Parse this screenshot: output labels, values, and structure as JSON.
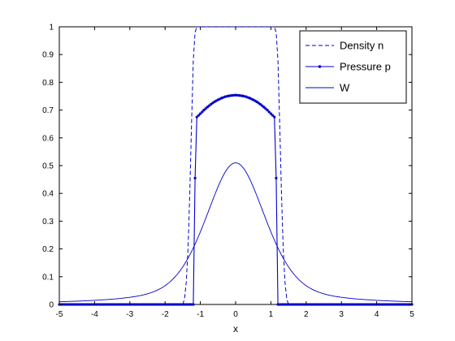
{
  "chart_data": {
    "type": "line",
    "title": "",
    "xlabel": "x",
    "ylabel": "",
    "xlim": [
      -5,
      5
    ],
    "ylim": [
      0,
      1
    ],
    "xticks": [
      "-5",
      "-4",
      "-3",
      "-2",
      "-1",
      "0",
      "1",
      "2",
      "3",
      "4",
      "5"
    ],
    "yticks": [
      "0",
      "0.1",
      "0.2",
      "0.3",
      "0.4",
      "0.5",
      "0.6",
      "0.7",
      "0.8",
      "0.9",
      "1"
    ],
    "grid": false,
    "legend_position": "top-right",
    "colors": {
      "series": "#0000cc",
      "axes": "#000000"
    },
    "series": [
      {
        "name": "Density n",
        "style": "dashed",
        "x": [
          -5,
          -1.5,
          -1.45,
          -1.4,
          -1.35,
          -1.3,
          -1.25,
          -1.2,
          -1.15,
          -1.1,
          1.1,
          1.15,
          1.2,
          1.25,
          1.3,
          1.35,
          1.4,
          1.45,
          1.5,
          5
        ],
        "values": [
          0,
          0,
          0.02,
          0.08,
          0.2,
          0.4,
          0.65,
          0.88,
          0.98,
          1,
          1,
          0.98,
          0.88,
          0.65,
          0.4,
          0.2,
          0.08,
          0.02,
          0,
          0
        ]
      },
      {
        "name": "Pressure p",
        "style": "solid-with-point-markers",
        "x": [
          -1.2,
          -1.15,
          -1.1,
          -1.0,
          -0.9,
          -0.8,
          -0.7,
          -0.6,
          -0.5,
          -0.4,
          -0.3,
          -0.2,
          -0.1,
          0,
          0.1,
          0.2,
          0.3,
          0.4,
          0.5,
          0.6,
          0.7,
          0.8,
          0.9,
          1.0,
          1.1,
          1.15,
          1.2
        ],
        "values": [
          0,
          0.455,
          0.675,
          0.687,
          0.7,
          0.711,
          0.721,
          0.73,
          0.737,
          0.743,
          0.748,
          0.751,
          0.753,
          0.754,
          0.753,
          0.751,
          0.748,
          0.743,
          0.737,
          0.73,
          0.721,
          0.711,
          0.7,
          0.687,
          0.675,
          0.455,
          0
        ],
        "zero_region_marker_step": 0.05
      },
      {
        "name": "W",
        "style": "solid",
        "peak": 0.51,
        "peak_x": 0,
        "half_width_scale": 1.1,
        "x": [
          -5,
          -4,
          -3,
          -2,
          -1,
          0,
          1,
          2,
          3,
          4,
          5
        ],
        "values": [
          0.01,
          0.025,
          0.06,
          0.14,
          0.335,
          0.51,
          0.335,
          0.14,
          0.06,
          0.025,
          0.01
        ]
      }
    ]
  }
}
